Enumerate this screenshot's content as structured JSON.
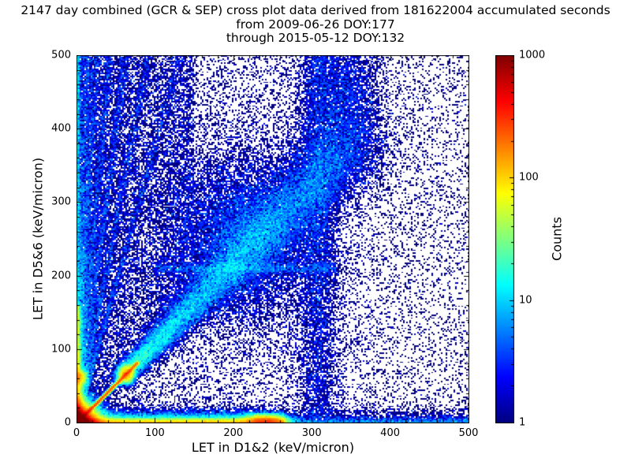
{
  "title": {
    "line1": "2147 day combined (GCR & SEP) cross plot data derived from 181622004 accumulated seconds",
    "line2": "from 2009-06-26 DOY:177",
    "line3": "through 2015-05-12 DOY:132"
  },
  "chart_data": {
    "type": "heatmap",
    "subtype": "2d-histogram-cross-plot",
    "xlabel": "LET in D1&2 (keV/micron)",
    "ylabel": "LET in D5&6 (keV/micron)",
    "xlim": [
      0,
      500
    ],
    "ylim": [
      0,
      500
    ],
    "xticks": [
      0,
      100,
      200,
      300,
      400,
      500
    ],
    "yticks": [
      0,
      100,
      200,
      300,
      400,
      500
    ],
    "minor_tick_step": 20,
    "grid": false,
    "colorbar": {
      "label": "Counts",
      "scale": "log",
      "min": 1,
      "max": 1000,
      "ticks": [
        1,
        10,
        100,
        1000
      ],
      "colormap": "jet",
      "empty_bin_color": "#ffffff"
    },
    "grid_bins": 250,
    "seed": 42,
    "features": [
      {
        "kind": "biexp",
        "label": "origin-hotspot",
        "n": 150000,
        "sx": 7,
        "sy": 7
      },
      {
        "kind": "hband",
        "label": "bottom-edge-band",
        "n": 40000,
        "x0": 0,
        "x1": 265,
        "px": 1,
        "y0": 0,
        "sy": 3.5,
        "ymode": "exp"
      },
      {
        "kind": "gauss",
        "label": "bottom-blob-240",
        "n": 15000,
        "cx": 240,
        "cy": 4,
        "sx": 14,
        "sy": 4
      },
      {
        "kind": "hband",
        "label": "bottom-sparse",
        "n": 6000,
        "x0": 0,
        "x1": 500,
        "px": 1,
        "y0": 0,
        "sy": 6,
        "ymode": "exp"
      },
      {
        "kind": "vband",
        "label": "left-edge-column",
        "n": 9000,
        "cx": 0,
        "sx": 2.5,
        "y0": 0,
        "y1": 160,
        "p": 1.5
      },
      {
        "kind": "vband",
        "label": "left-edge-sparse",
        "n": 4000,
        "cx": 0,
        "sx": 3,
        "y0": 0,
        "y1": 500,
        "p": 1
      },
      {
        "kind": "gauss",
        "label": "left-knot-60",
        "n": 4000,
        "cx": 4,
        "cy": 62,
        "sx": 5,
        "sy": 6
      },
      {
        "kind": "line",
        "label": "main-diagonal",
        "n": 25000,
        "t0": 0,
        "t1": 78,
        "p": 1.3,
        "slope": 1.06,
        "j0": 1.2,
        "j1": 0
      },
      {
        "kind": "gauss",
        "label": "diagonal-knot",
        "n": 6000,
        "cx": 63,
        "cy": 67,
        "sx": 5,
        "sy": 6
      },
      {
        "kind": "line",
        "label": "diagonal-band",
        "n": 30000,
        "t0": 55,
        "t1": 360,
        "p": 1.15,
        "slope": 1.08,
        "j0": 2,
        "j1": 0.07
      },
      {
        "kind": "gauss",
        "label": "mid-diagonal-cloud",
        "n": 15000,
        "cx": 215,
        "cy": 255,
        "sx": 48,
        "sy": 58
      },
      {
        "kind": "fan",
        "label": "steep-track-1",
        "n": 3000,
        "slope": 35,
        "ymax": 500,
        "p": 1.6,
        "w0": 1.5,
        "w1": 0.004
      },
      {
        "kind": "fan",
        "label": "steep-track-2",
        "n": 3000,
        "slope": 20,
        "ymax": 500,
        "p": 1.6,
        "w0": 1.5,
        "w1": 0.004
      },
      {
        "kind": "fan",
        "label": "steep-track-3",
        "n": 2800,
        "slope": 12,
        "ymax": 500,
        "p": 1.6,
        "w0": 1.5,
        "w1": 0.004
      },
      {
        "kind": "fan",
        "label": "steep-track-4",
        "n": 2600,
        "slope": 8,
        "ymax": 500,
        "p": 1.6,
        "w0": 1.5,
        "w1": 0.004
      },
      {
        "kind": "fan",
        "label": "steep-track-5",
        "n": 2400,
        "slope": 5.5,
        "ymax": 500,
        "p": 1.6,
        "w0": 1.5,
        "w1": 0.005
      },
      {
        "kind": "fan",
        "label": "steep-track-6",
        "n": 2200,
        "slope": 3.8,
        "ymax": 500,
        "p": 1.6,
        "w0": 1.5,
        "w1": 0.005
      },
      {
        "kind": "uniform",
        "label": "background-scatter",
        "n": 22000,
        "xmax": 500,
        "px": 1.7,
        "ymax": 500,
        "py": 1
      },
      {
        "kind": "wedge",
        "label": "upper-left-wedge",
        "n": 8000,
        "xmax": 150,
        "ymax": 500,
        "p": 0.9
      },
      {
        "kind": "vband",
        "label": "column-300",
        "n": 7000,
        "cx": 308,
        "sx": 14,
        "y0": 0,
        "y1": 500,
        "p": 0.9
      },
      {
        "kind": "gauss",
        "label": "upper-right-cluster",
        "n": 3500,
        "cx": 345,
        "cy": 440,
        "sx": 22,
        "sy": 45
      },
      {
        "kind": "hband",
        "label": "mid-horizontal-210",
        "n": 1500,
        "x0": 100,
        "x1": 330,
        "px": 1,
        "y0": 210,
        "sy": 4,
        "ymode": "gauss"
      }
    ]
  },
  "colors": {
    "background": "#ffffff",
    "frame": "#000000",
    "text": "#000000"
  }
}
